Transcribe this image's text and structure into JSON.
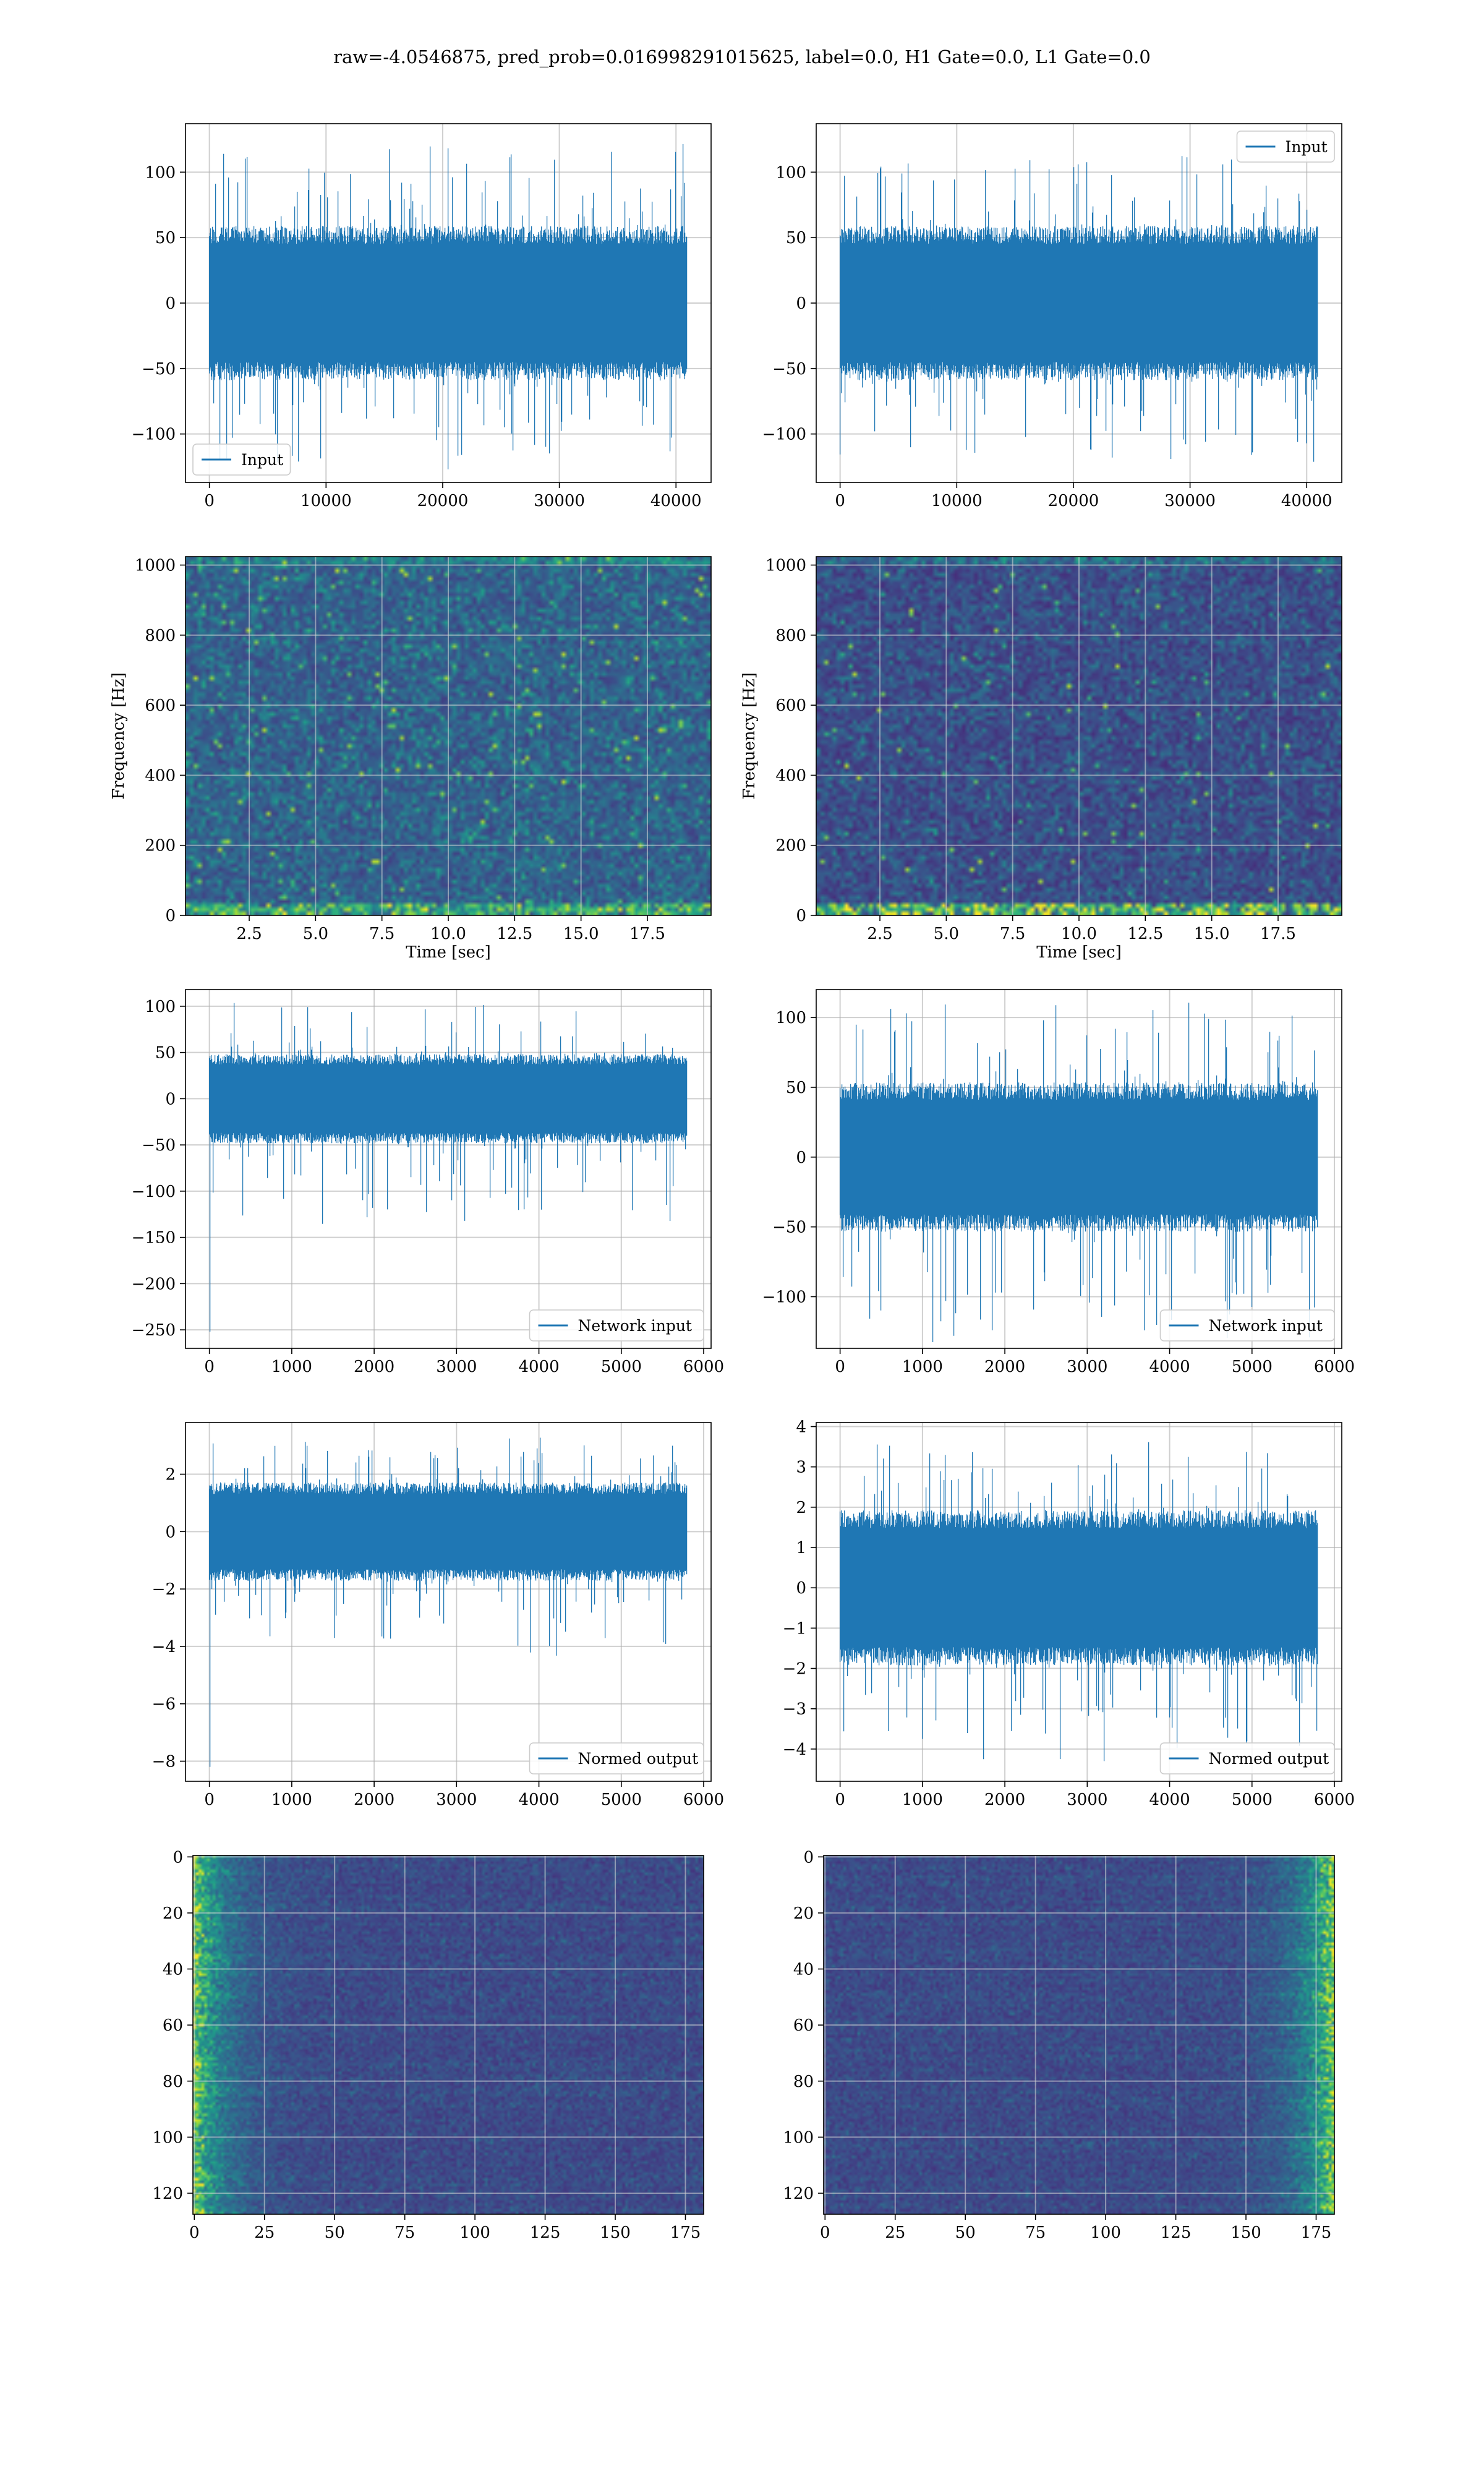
{
  "suptitle": "raw=-4.0546875, pred_prob=0.016998291015625, label=0.0, H1 Gate=0.0, L1 Gate=0.0",
  "colors": {
    "line": "#1f77b4",
    "grid": "#b0b0b0",
    "axis": "#000000",
    "background": "#ffffff"
  },
  "colormap": "viridis",
  "chart_data": [
    {
      "id": "p00",
      "type": "line",
      "title": "",
      "xlabel": "",
      "ylabel": "",
      "series": [
        {
          "name": "Input"
        }
      ],
      "legend": "lower left",
      "xlim": [
        -2048,
        43008
      ],
      "ylim": [
        -137,
        137
      ],
      "xticks": [
        0,
        10000,
        20000,
        30000,
        40000
      ],
      "yticks": [
        -100,
        -50,
        0,
        50,
        100
      ],
      "xtick_labels": [
        "0",
        "10000",
        "20000",
        "30000",
        "40000"
      ],
      "ytick_labels": [
        "−100",
        "−50",
        "0",
        "50",
        "100"
      ],
      "grid": true,
      "signal": {
        "n": 40960,
        "body": [
          -55,
          55
        ],
        "peak_range": [
          -127,
          124
        ],
        "approx": true
      }
    },
    {
      "id": "p01",
      "type": "line",
      "title": "",
      "xlabel": "",
      "ylabel": "",
      "series": [
        {
          "name": "Input"
        }
      ],
      "legend": "upper right",
      "xlim": [
        -2048,
        43008
      ],
      "ylim": [
        -137,
        137
      ],
      "xticks": [
        0,
        10000,
        20000,
        30000,
        40000
      ],
      "yticks": [
        -100,
        -50,
        0,
        50,
        100
      ],
      "xtick_labels": [
        "0",
        "10000",
        "20000",
        "30000",
        "40000"
      ],
      "ytick_labels": [
        "−100",
        "−50",
        "0",
        "50",
        "100"
      ],
      "grid": true,
      "signal": {
        "n": 40960,
        "body": [
          -55,
          55
        ],
        "peak_range": [
          -127,
          120
        ],
        "approx": true
      }
    },
    {
      "id": "p10",
      "type": "heatmap",
      "title": "",
      "xlabel": "Time [sec]",
      "ylabel": "Frequency [Hz]",
      "xlim": [
        0.1,
        19.9
      ],
      "ylim": [
        0,
        1024
      ],
      "xticks": [
        2.5,
        5.0,
        7.5,
        10.0,
        12.5,
        15.0,
        17.5
      ],
      "yticks": [
        0,
        200,
        400,
        600,
        800,
        1000
      ],
      "xtick_labels": [
        "2.5",
        "5.0",
        "7.5",
        "10.0",
        "12.5",
        "15.0",
        "17.5"
      ],
      "ytick_labels": [
        "0",
        "200",
        "400",
        "600",
        "800",
        "1000"
      ],
      "grid": true,
      "colormap": "viridis",
      "texture": {
        "cols": 130,
        "rows": 90,
        "base": 0.18,
        "spread": 0.32,
        "hotspots": 0.016,
        "bottom_band": 0.55,
        "top_band": 0.25,
        "approx": true
      }
    },
    {
      "id": "p11",
      "type": "heatmap",
      "title": "",
      "xlabel": "Time [sec]",
      "ylabel": "Frequency [Hz]",
      "xlim": [
        0.1,
        19.9
      ],
      "ylim": [
        0,
        1024
      ],
      "xticks": [
        2.5,
        5.0,
        7.5,
        10.0,
        12.5,
        15.0,
        17.5
      ],
      "yticks": [
        0,
        200,
        400,
        600,
        800,
        1000
      ],
      "xtick_labels": [
        "2.5",
        "5.0",
        "7.5",
        "10.0",
        "12.5",
        "15.0",
        "17.5"
      ],
      "ytick_labels": [
        "0",
        "200",
        "400",
        "600",
        "800",
        "1000"
      ],
      "grid": true,
      "colormap": "viridis",
      "texture": {
        "cols": 130,
        "rows": 90,
        "base": 0.12,
        "spread": 0.25,
        "hotspots": 0.008,
        "bottom_band": 0.85,
        "top_band": 0.25,
        "approx": true
      }
    },
    {
      "id": "p20",
      "type": "line",
      "title": "",
      "xlabel": "",
      "ylabel": "",
      "series": [
        {
          "name": "Network input"
        }
      ],
      "legend": "lower right",
      "xlim": [
        -290,
        6090
      ],
      "ylim": [
        -270,
        118
      ],
      "xticks": [
        0,
        1000,
        2000,
        3000,
        4000,
        5000,
        6000
      ],
      "yticks": [
        -250,
        -200,
        -150,
        -100,
        -50,
        0,
        50,
        100
      ],
      "xtick_labels": [
        "0",
        "1000",
        "2000",
        "3000",
        "4000",
        "5000",
        "6000"
      ],
      "ytick_labels": [
        "−250",
        "−200",
        "−150",
        "−100",
        "−50",
        "0",
        "50",
        "100"
      ],
      "grid": true,
      "signal": {
        "n": 5800,
        "body": [
          -45,
          45
        ],
        "peak_range": [
          -137,
          104
        ],
        "start_spike": -252,
        "approx": true
      }
    },
    {
      "id": "p21",
      "type": "line",
      "title": "",
      "xlabel": "",
      "ylabel": "",
      "series": [
        {
          "name": "Network input"
        }
      ],
      "legend": "lower right",
      "xlim": [
        -290,
        6090
      ],
      "ylim": [
        -137,
        120
      ],
      "xticks": [
        0,
        1000,
        2000,
        3000,
        4000,
        5000,
        6000
      ],
      "yticks": [
        -100,
        -50,
        0,
        50,
        100
      ],
      "xtick_labels": [
        "0",
        "1000",
        "2000",
        "3000",
        "4000",
        "5000",
        "6000"
      ],
      "ytick_labels": [
        "−100",
        "−50",
        "0",
        "50",
        "100"
      ],
      "grid": true,
      "signal": {
        "n": 5800,
        "body": [
          -50,
          50
        ],
        "peak_range": [
          -133,
          114
        ],
        "approx": true
      }
    },
    {
      "id": "p30",
      "type": "line",
      "title": "",
      "xlabel": "",
      "ylabel": "",
      "series": [
        {
          "name": "Normed output"
        }
      ],
      "legend": "lower right",
      "xlim": [
        -290,
        6090
      ],
      "ylim": [
        -8.7,
        3.8
      ],
      "xticks": [
        0,
        1000,
        2000,
        3000,
        4000,
        5000,
        6000
      ],
      "yticks": [
        -8,
        -6,
        -4,
        -2,
        0,
        2
      ],
      "xtick_labels": [
        "0",
        "1000",
        "2000",
        "3000",
        "4000",
        "5000",
        "6000"
      ],
      "ytick_labels": [
        "−8",
        "−6",
        "−4",
        "−2",
        "0",
        "2"
      ],
      "grid": true,
      "signal": {
        "n": 5800,
        "body": [
          -1.6,
          1.6
        ],
        "peak_range": [
          -4.5,
          3.4
        ],
        "start_spike": -8.2,
        "approx": true
      }
    },
    {
      "id": "p31",
      "type": "line",
      "title": "",
      "xlabel": "",
      "ylabel": "",
      "series": [
        {
          "name": "Normed output"
        }
      ],
      "legend": "lower right",
      "xlim": [
        -290,
        6090
      ],
      "ylim": [
        -4.8,
        4.1
      ],
      "xticks": [
        0,
        1000,
        2000,
        3000,
        4000,
        5000,
        6000
      ],
      "yticks": [
        -4,
        -3,
        -2,
        -1,
        0,
        1,
        2,
        3,
        4
      ],
      "xtick_labels": [
        "0",
        "1000",
        "2000",
        "3000",
        "4000",
        "5000",
        "6000"
      ],
      "ytick_labels": [
        "−4",
        "−3",
        "−2",
        "−1",
        "0",
        "1",
        "2",
        "3",
        "4"
      ],
      "grid": true,
      "signal": {
        "n": 5800,
        "body": [
          -1.8,
          1.8
        ],
        "peak_range": [
          -4.3,
          3.7
        ],
        "approx": true
      }
    },
    {
      "id": "p40",
      "type": "heatmap",
      "title": "",
      "xlabel": "",
      "ylabel": "",
      "xlim": [
        -0.5,
        181.5
      ],
      "ylim": [
        127.5,
        -0.5
      ],
      "xticks": [
        0,
        25,
        50,
        75,
        100,
        125,
        150,
        175
      ],
      "yticks": [
        0,
        20,
        40,
        60,
        80,
        100,
        120
      ],
      "xtick_labels": [
        "0",
        "25",
        "50",
        "75",
        "100",
        "125",
        "150",
        "175"
      ],
      "ytick_labels": [
        "0",
        "20",
        "40",
        "60",
        "80",
        "100",
        "120"
      ],
      "grid": true,
      "colormap": "viridis",
      "texture": {
        "cols": 182,
        "rows": 128,
        "hot_side": "left",
        "hot_width": 22,
        "base": 0.14,
        "approx": true
      }
    },
    {
      "id": "p41",
      "type": "heatmap",
      "title": "",
      "xlabel": "",
      "ylabel": "",
      "xlim": [
        -0.5,
        181.5
      ],
      "ylim": [
        127.5,
        -0.5
      ],
      "xticks": [
        0,
        25,
        50,
        75,
        100,
        125,
        150,
        175
      ],
      "yticks": [
        0,
        20,
        40,
        60,
        80,
        100,
        120
      ],
      "xtick_labels": [
        "0",
        "25",
        "50",
        "75",
        "100",
        "125",
        "150",
        "175"
      ],
      "ytick_labels": [
        "0",
        "20",
        "40",
        "60",
        "80",
        "100",
        "120"
      ],
      "grid": true,
      "colormap": "viridis",
      "texture": {
        "cols": 182,
        "rows": 128,
        "hot_side": "right",
        "hot_width": 22,
        "base": 0.14,
        "approx": true
      }
    }
  ]
}
